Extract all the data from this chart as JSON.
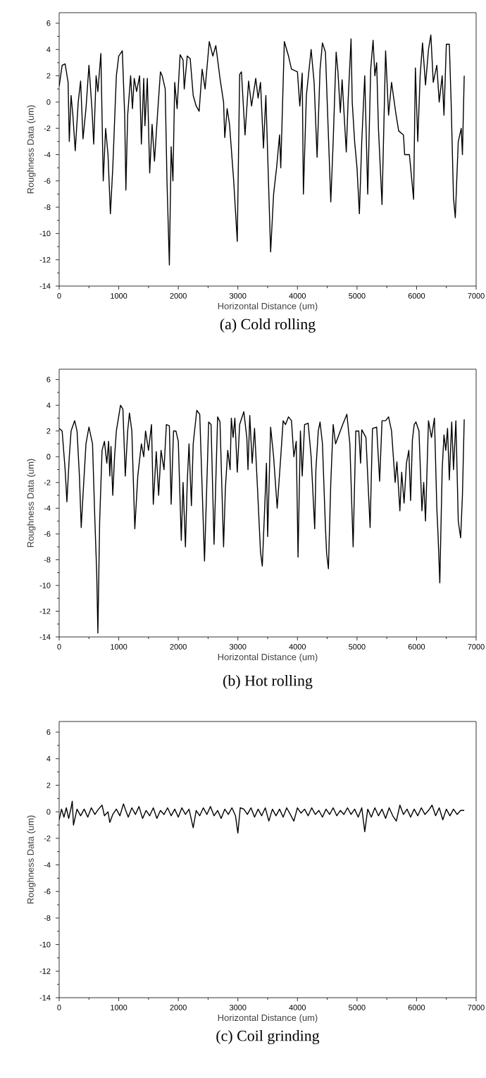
{
  "chart_data": [
    {
      "type": "line",
      "title": "(a) Cold rolling",
      "xlabel": "Horizontal Distance (um)",
      "ylabel": "Roughness Data (um)",
      "color": "#000000",
      "xlim": [
        0,
        7000
      ],
      "ylim": [
        -14,
        6.8
      ],
      "xticks": [
        0,
        1000,
        2000,
        3000,
        4000,
        5000,
        6000,
        7000
      ],
      "yticks": [
        -14,
        -12,
        -10,
        -8,
        -6,
        -4,
        -2,
        0,
        2,
        4,
        6
      ],
      "x": [
        0,
        50,
        100,
        150,
        170,
        200,
        230,
        270,
        320,
        360,
        400,
        450,
        500,
        550,
        580,
        620,
        650,
        700,
        740,
        780,
        820,
        860,
        900,
        930,
        960,
        1000,
        1060,
        1100,
        1120,
        1150,
        1200,
        1230,
        1260,
        1300,
        1350,
        1380,
        1420,
        1440,
        1480,
        1520,
        1560,
        1600,
        1650,
        1700,
        1730,
        1780,
        1810,
        1850,
        1880,
        1910,
        1940,
        1980,
        2030,
        2080,
        2100,
        2150,
        2200,
        2250,
        2300,
        2350,
        2400,
        2450,
        2520,
        2580,
        2630,
        2700,
        2760,
        2780,
        2820,
        2860,
        2930,
        2990,
        3030,
        3060,
        3120,
        3180,
        3230,
        3300,
        3340,
        3380,
        3430,
        3470,
        3550,
        3600,
        3650,
        3700,
        3720,
        3780,
        3850,
        3900,
        4000,
        4040,
        4080,
        4100,
        4150,
        4230,
        4280,
        4330,
        4380,
        4420,
        4470,
        4500,
        4560,
        4600,
        4650,
        4680,
        4720,
        4750,
        4820,
        4850,
        4900,
        4920,
        4960,
        5000,
        5040,
        5080,
        5130,
        5180,
        5230,
        5270,
        5300,
        5330,
        5360,
        5420,
        5480,
        5530,
        5580,
        5650,
        5700,
        5780,
        5800,
        5880,
        5950,
        5980,
        6020,
        6060,
        6100,
        6150,
        6200,
        6240,
        6280,
        6340,
        6380,
        6430,
        6460,
        6500,
        6550,
        6580,
        6620,
        6650,
        6700,
        6750,
        6770,
        6800
      ],
      "values": [
        1.2,
        2.8,
        2.9,
        1.5,
        -3,
        0.5,
        -1,
        -3.7,
        0,
        1.6,
        -2.8,
        -0.5,
        2.8,
        -0.5,
        -3.2,
        2,
        0.8,
        3.7,
        -6,
        -2,
        -4,
        -8.5,
        -5,
        -1.5,
        2,
        3.5,
        3.9,
        -1,
        -6.7,
        -1,
        2,
        -0.5,
        1.8,
        0.8,
        2,
        -3.2,
        1.8,
        -1.8,
        1.8,
        -5.4,
        -1.7,
        -4.5,
        -1,
        2.3,
        2,
        1,
        -6,
        -12.4,
        -3.4,
        -6,
        1.5,
        -0.5,
        3.6,
        3.2,
        1,
        3.5,
        3.3,
        0.5,
        -0.3,
        -0.7,
        2.5,
        1,
        4.6,
        3.5,
        4.3,
        1.8,
        0,
        -2.7,
        -0.5,
        -1.7,
        -6,
        -10.6,
        2.1,
        2.3,
        -2.5,
        1.6,
        -0.3,
        1.8,
        0.3,
        1.5,
        -3.5,
        0.5,
        -11.4,
        -7,
        -5,
        -2.5,
        -5,
        4.6,
        3.5,
        2.5,
        2.3,
        -0.3,
        2.2,
        -7,
        0.5,
        4,
        1.5,
        -4.2,
        2.5,
        4.5,
        3.8,
        0,
        -7.6,
        -3,
        3.8,
        2.3,
        -0.8,
        1.7,
        -3.8,
        0,
        4.8,
        0,
        -3,
        -5,
        -8.5,
        -3,
        2,
        -7,
        2.5,
        4.7,
        2,
        3,
        -2,
        -7.8,
        3.9,
        -1,
        1.5,
        -0.8,
        -2.2,
        -2.5,
        -4,
        -4,
        -7.4,
        2.6,
        -3,
        2,
        4.5,
        1.3,
        4,
        5.1,
        1.5,
        2.8,
        0,
        2,
        -1,
        4.4,
        4.4,
        0,
        -7.3,
        -8.8,
        -3,
        -2,
        -4,
        2
      ]
    },
    {
      "type": "line",
      "title": "(b) Hot rolling",
      "xlabel": "Horizontal Distance (um)",
      "ylabel": "Roughness Data (um)",
      "color": "#000000",
      "xlim": [
        0,
        7000
      ],
      "ylim": [
        -14,
        6.8
      ],
      "xticks": [
        0,
        1000,
        2000,
        3000,
        4000,
        5000,
        6000,
        7000
      ],
      "yticks": [
        -14,
        -12,
        -10,
        -8,
        -6,
        -4,
        -2,
        0,
        2,
        4,
        6
      ],
      "x": [
        0,
        50,
        100,
        130,
        170,
        200,
        260,
        300,
        340,
        370,
        400,
        450,
        500,
        560,
        600,
        630,
        650,
        680,
        720,
        760,
        800,
        830,
        850,
        870,
        900,
        930,
        960,
        1030,
        1070,
        1110,
        1150,
        1180,
        1220,
        1270,
        1320,
        1380,
        1420,
        1450,
        1500,
        1550,
        1580,
        1630,
        1670,
        1710,
        1760,
        1800,
        1850,
        1880,
        1920,
        1960,
        2000,
        2050,
        2080,
        2120,
        2150,
        2180,
        2220,
        2250,
        2310,
        2360,
        2440,
        2510,
        2550,
        2600,
        2660,
        2700,
        2760,
        2790,
        2830,
        2870,
        2890,
        2920,
        2950,
        2990,
        3030,
        3100,
        3150,
        3170,
        3200,
        3240,
        3280,
        3330,
        3380,
        3410,
        3450,
        3480,
        3500,
        3550,
        3600,
        3660,
        3720,
        3760,
        3800,
        3850,
        3900,
        3940,
        3980,
        4010,
        4050,
        4080,
        4120,
        4180,
        4230,
        4290,
        4310,
        4350,
        4380,
        4420,
        4470,
        4490,
        4520,
        4560,
        4600,
        4640,
        4760,
        4830,
        4880,
        4935,
        4980,
        5030,
        5060,
        5080,
        5150,
        5220,
        5260,
        5330,
        5380,
        5420,
        5480,
        5530,
        5580,
        5640,
        5670,
        5720,
        5750,
        5790,
        5830,
        5870,
        5900,
        5930,
        5960,
        5990,
        6040,
        6090,
        6120,
        6150,
        6200,
        6250,
        6300,
        6340,
        6360,
        6390,
        6430,
        6460,
        6490,
        6520,
        6550,
        6590,
        6620,
        6660,
        6700,
        6740,
        6770,
        6800
      ],
      "values": [
        2.2,
        2,
        -1,
        -3.5,
        0,
        2,
        2.8,
        2,
        -1.5,
        -5.5,
        -3,
        1,
        2.3,
        1,
        -5,
        -9,
        -13.7,
        -5,
        0.5,
        1.2,
        -0.5,
        1.2,
        -1.5,
        0.8,
        -3,
        0,
        2,
        4,
        3.7,
        -1.5,
        2,
        3.4,
        2,
        -5.6,
        -1.5,
        1,
        0,
        2,
        0.5,
        2.5,
        -3.7,
        0.4,
        -3,
        0.5,
        -1,
        2.5,
        2.4,
        -3.7,
        2,
        2,
        1.2,
        -6.5,
        -2,
        -7,
        -2,
        1,
        -3.8,
        1,
        3.6,
        3.3,
        -8.1,
        2.7,
        2.5,
        -6.8,
        3.1,
        2.7,
        -7,
        -2.5,
        0.5,
        -1,
        3,
        1.5,
        3,
        -1.2,
        2.5,
        3.5,
        1.5,
        -1,
        3.2,
        -0.5,
        2.2,
        -2.5,
        -7.4,
        -8.5,
        -4,
        -0.5,
        -6.2,
        2.3,
        0,
        -4,
        0,
        2.8,
        2.5,
        3.1,
        2.8,
        0,
        1.2,
        -7.8,
        2,
        -1.5,
        2.5,
        2.6,
        0,
        -5.6,
        -1,
        2,
        2.7,
        1,
        -5.5,
        -7.5,
        -8.7,
        -2,
        2.5,
        1,
        2.5,
        3.3,
        1,
        -7,
        2,
        2,
        -0.5,
        2.1,
        1.5,
        -5.5,
        2.2,
        2.3,
        -1.9,
        2.8,
        2.8,
        3.1,
        2,
        -2,
        -0.4,
        -4.2,
        -1.2,
        -3.6,
        -0.5,
        0.5,
        -3.4,
        1.3,
        2.5,
        2.7,
        2,
        -4.2,
        -2,
        -5,
        2.8,
        1.5,
        3,
        -4,
        -6,
        -9.8,
        -1,
        1.7,
        0.5,
        2.2,
        -1.8,
        2.7,
        -1,
        2.8,
        -5,
        -6.3,
        -3,
        2.9
      ]
    },
    {
      "type": "line",
      "title": "(c) Coil grinding",
      "xlabel": "Horizontal Distance (um)",
      "ylabel": "Roughness Data (um)",
      "color": "#000000",
      "xlim": [
        0,
        7000
      ],
      "ylim": [
        -14,
        6.8
      ],
      "xticks": [
        0,
        1000,
        2000,
        3000,
        4000,
        5000,
        6000,
        7000
      ],
      "yticks": [
        -14,
        -12,
        -10,
        -8,
        -6,
        -4,
        -2,
        0,
        2,
        4,
        6
      ],
      "x": [
        0,
        40,
        80,
        120,
        160,
        200,
        220,
        240,
        300,
        360,
        420,
        480,
        540,
        600,
        660,
        720,
        760,
        820,
        850,
        900,
        960,
        1020,
        1080,
        1110,
        1160,
        1220,
        1280,
        1340,
        1400,
        1460,
        1520,
        1580,
        1640,
        1700,
        1760,
        1820,
        1880,
        1940,
        2000,
        2060,
        2120,
        2180,
        2250,
        2300,
        2360,
        2420,
        2480,
        2540,
        2600,
        2660,
        2720,
        2780,
        2840,
        2900,
        2960,
        3000,
        3040,
        3100,
        3160,
        3220,
        3280,
        3340,
        3400,
        3460,
        3520,
        3580,
        3640,
        3700,
        3760,
        3820,
        3880,
        3940,
        4000,
        4060,
        4120,
        4180,
        4240,
        4300,
        4360,
        4420,
        4480,
        4540,
        4600,
        4660,
        4720,
        4780,
        4840,
        4900,
        4960,
        5020,
        5080,
        5130,
        5180,
        5240,
        5300,
        5360,
        5420,
        5480,
        5540,
        5600,
        5660,
        5720,
        5780,
        5840,
        5900,
        5960,
        6020,
        6080,
        6140,
        6200,
        6260,
        6320,
        6380,
        6440,
        6500,
        6560,
        6620,
        6680,
        6740,
        6800
      ],
      "values": [
        -0.6,
        0.2,
        -0.4,
        0.3,
        -0.5,
        0.3,
        0.8,
        -1,
        0.2,
        -0.3,
        0.2,
        -0.4,
        0.3,
        -0.2,
        0.2,
        0.5,
        -0.3,
        0,
        -0.8,
        -0.2,
        0.2,
        -0.3,
        0.6,
        0.2,
        -0.4,
        0.3,
        -0.2,
        0.4,
        -0.5,
        0.1,
        -0.3,
        0.3,
        -0.5,
        0.1,
        -0.2,
        0.3,
        -0.3,
        0.2,
        -0.4,
        0.3,
        -0.2,
        0.2,
        -1.2,
        0.1,
        -0.3,
        0.3,
        -0.2,
        0.4,
        -0.3,
        0.1,
        -0.5,
        0.2,
        -0.2,
        0.3,
        -0.3,
        -1.6,
        0.3,
        0.2,
        -0.2,
        0.3,
        -0.4,
        0.2,
        -0.3,
        0.3,
        -0.7,
        0.2,
        -0.3,
        0.2,
        -0.4,
        0.3,
        -0.2,
        -0.7,
        0.3,
        -0.1,
        0.2,
        -0.3,
        0.3,
        -0.2,
        0.1,
        -0.4,
        0.2,
        -0.2,
        0.3,
        -0.3,
        0.1,
        -0.2,
        0.3,
        -0.2,
        0.2,
        -0.4,
        0.3,
        -1.5,
        0.2,
        -0.4,
        0.3,
        -0.3,
        0.2,
        -0.5,
        0.3,
        -0.3,
        -0.7,
        0.5,
        -0.2,
        0.2,
        -0.4,
        0.2,
        -0.3,
        0.3,
        -0.2,
        0.1,
        0.5,
        -0.3,
        0.3,
        -0.6,
        0.2,
        -0.3,
        0.2,
        -0.2,
        0.1,
        0.1
      ]
    }
  ]
}
